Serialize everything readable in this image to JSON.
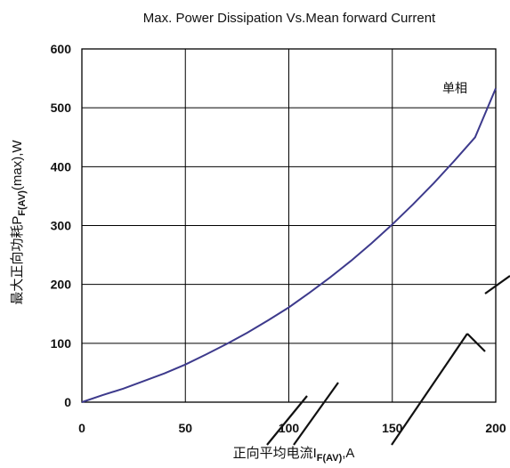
{
  "chart_data": {
    "type": "line",
    "title": "Max. Power Dissipation Vs.Mean forward Current",
    "xlabel": {
      "prefix": "正向平均电流I",
      "sub": "F(AV)",
      "suffix": ",A"
    },
    "ylabel": {
      "prefix": "最大正向功耗P",
      "sub": "F(AV)",
      "suffix": "(max),W"
    },
    "xlim": [
      0,
      200
    ],
    "ylim": [
      0,
      600
    ],
    "xticks": [
      0,
      50,
      100,
      150,
      200
    ],
    "yticks": [
      0,
      100,
      200,
      300,
      400,
      500,
      600
    ],
    "grid": true,
    "series": [
      {
        "name": "单相",
        "x": [
          0,
          10,
          20,
          30,
          40,
          50,
          60,
          70,
          80,
          90,
          100,
          110,
          120,
          130,
          140,
          150,
          160,
          170,
          180,
          190,
          200
        ],
        "y": [
          0,
          12,
          23,
          36,
          49,
          64,
          81,
          99,
          118,
          139,
          161,
          186,
          212,
          240,
          270,
          302,
          336,
          372,
          410,
          450,
          533
        ]
      }
    ]
  }
}
